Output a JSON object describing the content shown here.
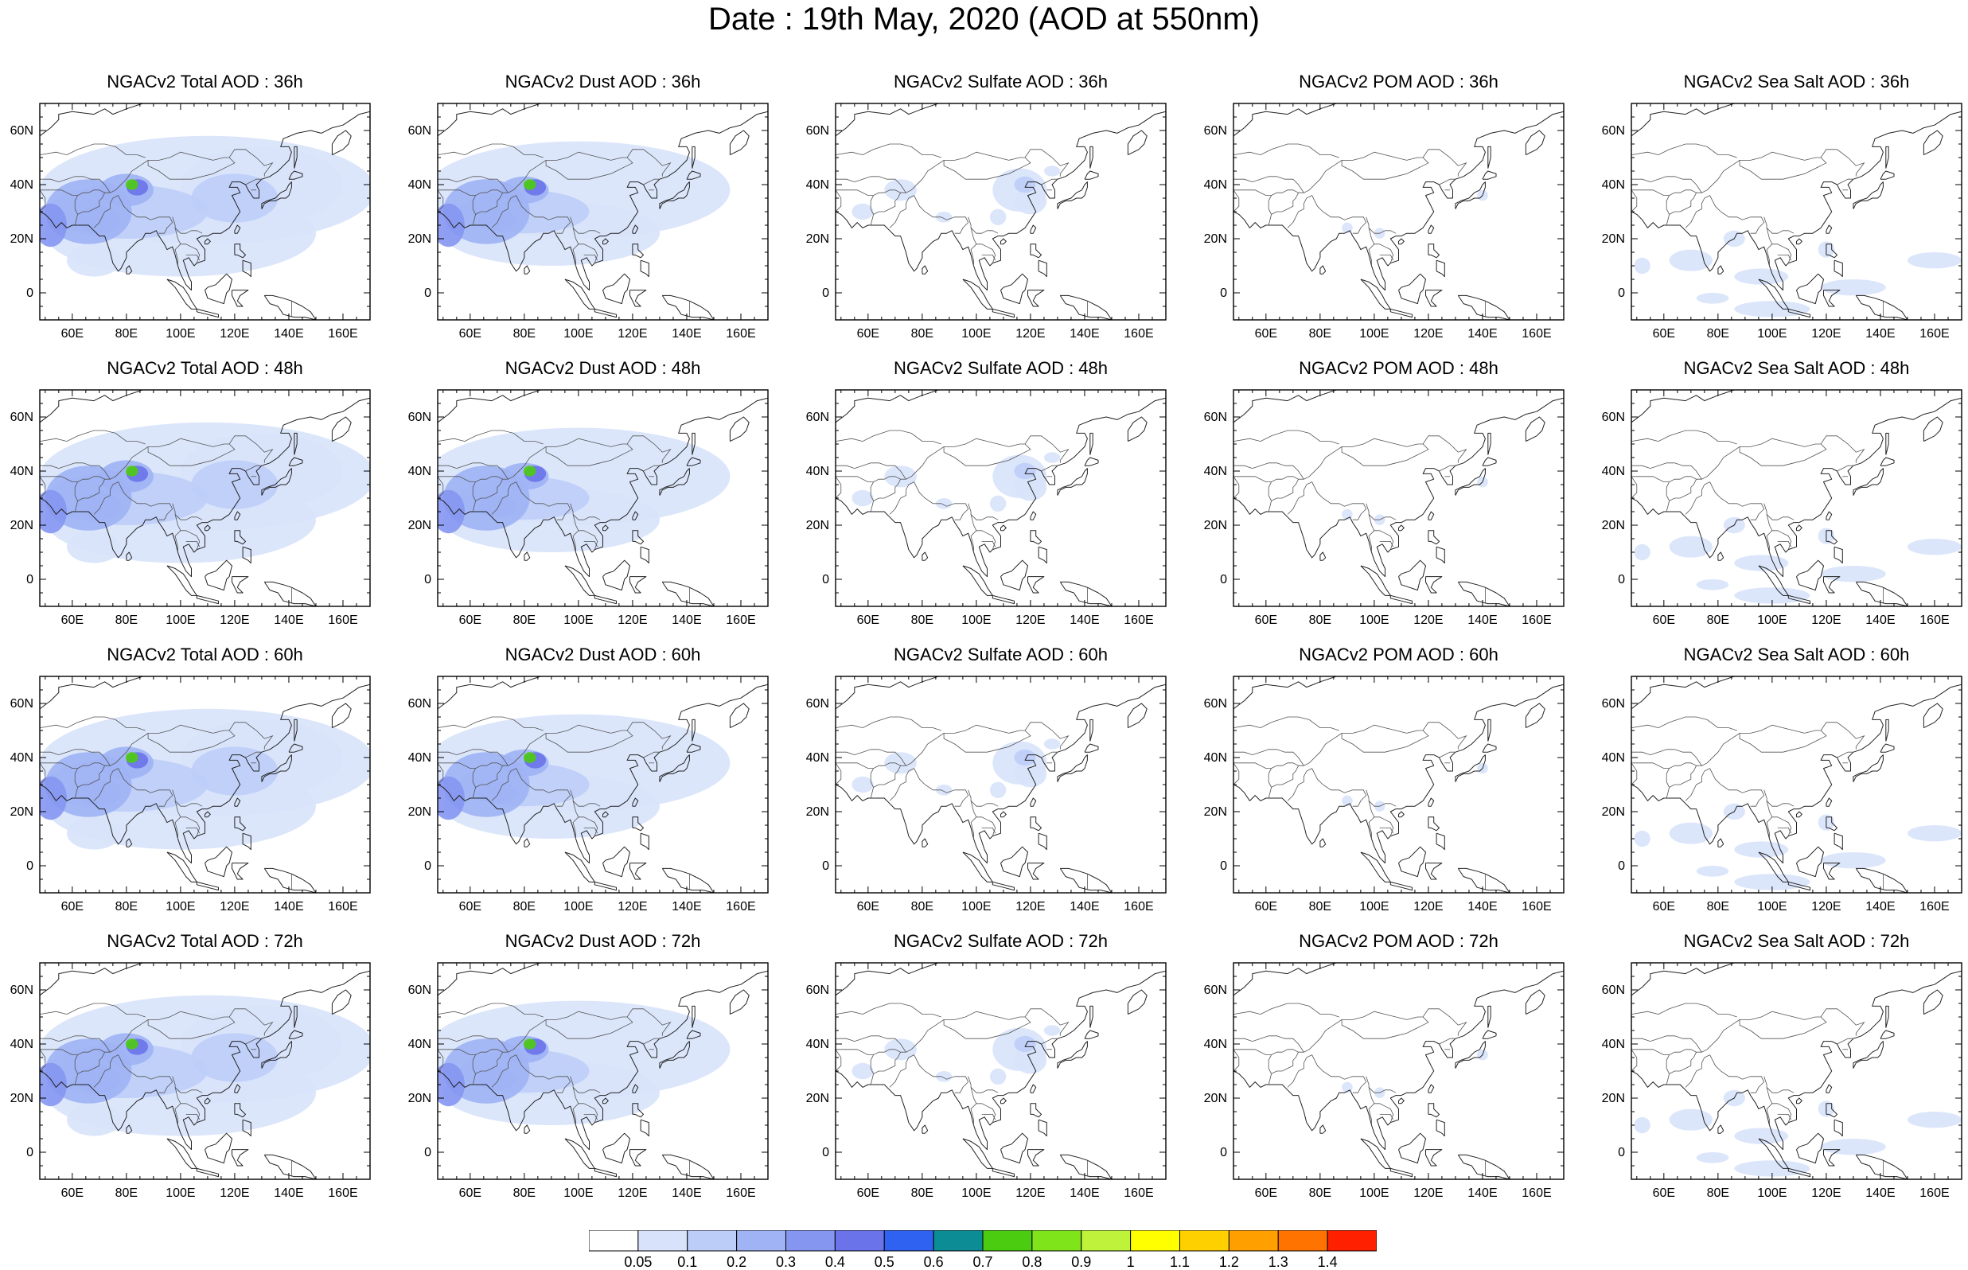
{
  "title": "Date : 19th May, 2020 (AOD at 550nm)",
  "map": {
    "lon_range": [
      48,
      170
    ],
    "lat_range": [
      -10,
      70
    ],
    "lon_ticks": [
      60,
      80,
      100,
      120,
      140,
      160
    ],
    "lon_tick_labels": [
      "60E",
      "80E",
      "100E",
      "120E",
      "140E",
      "160E"
    ],
    "lat_ticks": [
      0,
      20,
      40,
      60
    ],
    "lat_tick_labels": [
      "0",
      "20N",
      "40N",
      "60N"
    ]
  },
  "panels": [
    {
      "title": "NGACv2 Total AOD : 36h",
      "field": "total",
      "hour": 36
    },
    {
      "title": "NGACv2 Dust AOD : 36h",
      "field": "dust",
      "hour": 36
    },
    {
      "title": "NGACv2 Sulfate AOD : 36h",
      "field": "sulfate",
      "hour": 36
    },
    {
      "title": "NGACv2 POM AOD : 36h",
      "field": "pom",
      "hour": 36
    },
    {
      "title": "NGACv2 Sea Salt AOD : 36h",
      "field": "seasalt",
      "hour": 36
    },
    {
      "title": "NGACv2 Total AOD : 48h",
      "field": "total",
      "hour": 48
    },
    {
      "title": "NGACv2 Dust AOD : 48h",
      "field": "dust",
      "hour": 48
    },
    {
      "title": "NGACv2 Sulfate AOD : 48h",
      "field": "sulfate",
      "hour": 48
    },
    {
      "title": "NGACv2 POM AOD : 48h",
      "field": "pom",
      "hour": 48
    },
    {
      "title": "NGACv2 Sea Salt AOD : 48h",
      "field": "seasalt",
      "hour": 48
    },
    {
      "title": "NGACv2 Total AOD : 60h",
      "field": "total",
      "hour": 60
    },
    {
      "title": "NGACv2 Dust AOD : 60h",
      "field": "dust",
      "hour": 60
    },
    {
      "title": "NGACv2 Sulfate AOD : 60h",
      "field": "sulfate",
      "hour": 60
    },
    {
      "title": "NGACv2 POM AOD : 60h",
      "field": "pom",
      "hour": 60
    },
    {
      "title": "NGACv2 Sea Salt AOD : 60h",
      "field": "seasalt",
      "hour": 60
    },
    {
      "title": "NGACv2 Total AOD : 72h",
      "field": "total",
      "hour": 72
    },
    {
      "title": "NGACv2 Dust AOD : 72h",
      "field": "dust",
      "hour": 72
    },
    {
      "title": "NGACv2 Sulfate AOD : 72h",
      "field": "sulfate",
      "hour": 72
    },
    {
      "title": "NGACv2 POM AOD : 72h",
      "field": "pom",
      "hour": 72
    },
    {
      "title": "NGACv2 Sea Salt  AOD : 72h",
      "field": "seasalt",
      "hour": 72
    }
  ],
  "colorbar": {
    "labels": [
      "0.05",
      "0.1",
      "0.2",
      "0.3",
      "0.4",
      "0.5",
      "0.6",
      "0.7",
      "0.8",
      "0.9",
      "1",
      "1.1",
      "1.2",
      "1.3",
      "1.4"
    ],
    "colors": [
      "#ffffff",
      "#d8e3fb",
      "#bccdf8",
      "#9fb3f5",
      "#8596f1",
      "#6b73ea",
      "#2f62f0",
      "#0c8c94",
      "#4ccc10",
      "#7fe51a",
      "#bff23a",
      "#ffff00",
      "#ffd000",
      "#ffa000",
      "#ff7400",
      "#ff2000"
    ]
  }
}
